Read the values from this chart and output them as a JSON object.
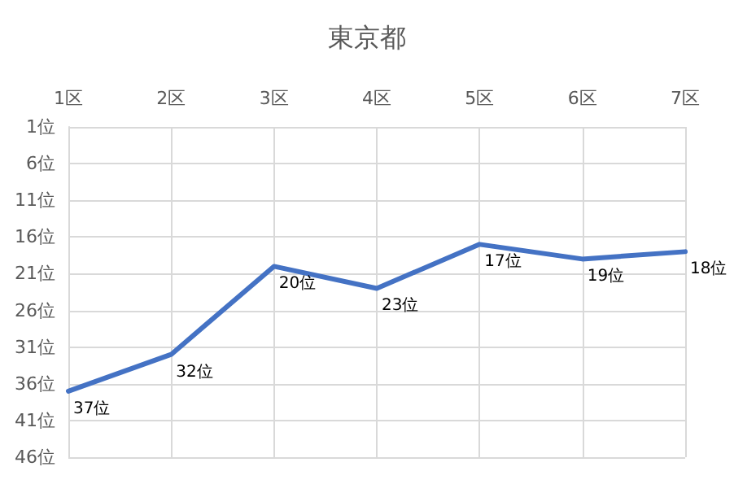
{
  "chart_data": {
    "type": "line",
    "title": "東京都",
    "categories": [
      "1区",
      "2区",
      "3区",
      "4区",
      "5区",
      "6区",
      "7区"
    ],
    "values": [
      37,
      32,
      20,
      23,
      17,
      19,
      18
    ],
    "value_labels": [
      "37位",
      "32位",
      "20位",
      "23位",
      "17位",
      "19位",
      "18位"
    ],
    "color": "#4472c4",
    "ylim": [
      46,
      1
    ],
    "yticks": [
      {
        "value": 1,
        "label": "1位"
      },
      {
        "value": 6,
        "label": "6位"
      },
      {
        "value": 11,
        "label": "11位"
      },
      {
        "value": 16,
        "label": "16位"
      },
      {
        "value": 21,
        "label": "21位"
      },
      {
        "value": 26,
        "label": "26位"
      },
      {
        "value": 31,
        "label": "31位"
      },
      {
        "value": 36,
        "label": "36位"
      },
      {
        "value": 41,
        "label": "41位"
      },
      {
        "value": 46,
        "label": "46位"
      }
    ],
    "grid": true,
    "marker": "none",
    "line_style": "solid"
  }
}
